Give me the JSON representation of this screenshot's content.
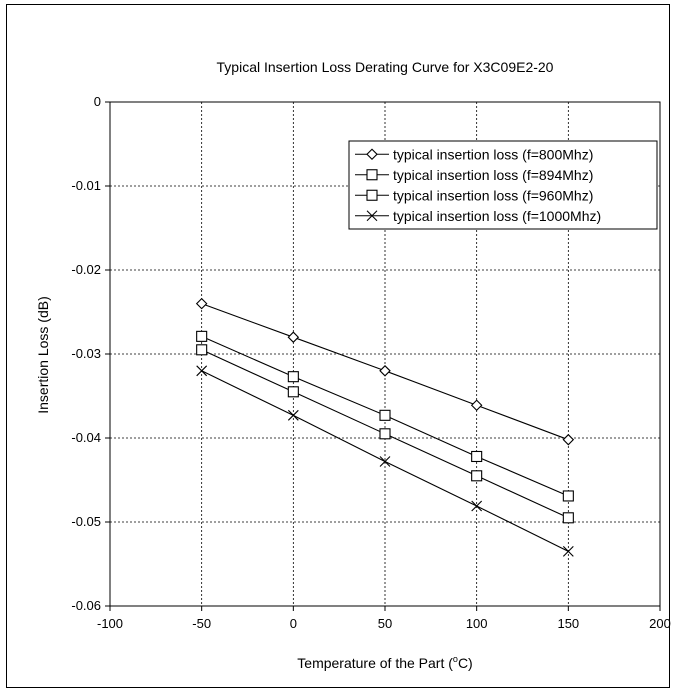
{
  "chart_data": {
    "type": "line",
    "title": "Typical Insertion Loss Derating Curve for X3C09E2-20",
    "xlabel": "Temperature of the Part (",
    "xlabel_sup": "o",
    "xlabel_suffix": "C)",
    "ylabel": "Insertion Loss (dB)",
    "xlim": [
      -100,
      200
    ],
    "ylim": [
      -0.06,
      0
    ],
    "xticks": [
      -100,
      -50,
      0,
      50,
      100,
      150,
      200
    ],
    "yticks": [
      0,
      -0.01,
      -0.02,
      -0.03,
      -0.04,
      -0.05,
      -0.06
    ],
    "grid": true,
    "legend_position": "top-right",
    "x": [
      -50,
      0,
      50,
      100,
      150
    ],
    "series": [
      {
        "name": "typical insertion loss (f=800Mhz)",
        "marker": "diamond",
        "values": [
          -0.024,
          -0.028,
          -0.032,
          -0.0361,
          -0.0402
        ]
      },
      {
        "name": "typical insertion loss (f=894Mhz)",
        "marker": "square",
        "values": [
          -0.0279,
          -0.0327,
          -0.0373,
          -0.0422,
          -0.0469
        ]
      },
      {
        "name": "typical insertion loss (f=960Mhz)",
        "marker": "square",
        "values": [
          -0.0295,
          -0.0345,
          -0.0395,
          -0.0445,
          -0.0495
        ]
      },
      {
        "name": "typical insertion loss (f=1000Mhz)",
        "marker": "x",
        "values": [
          -0.032,
          -0.0373,
          -0.0428,
          -0.0481,
          -0.0535
        ]
      }
    ]
  }
}
